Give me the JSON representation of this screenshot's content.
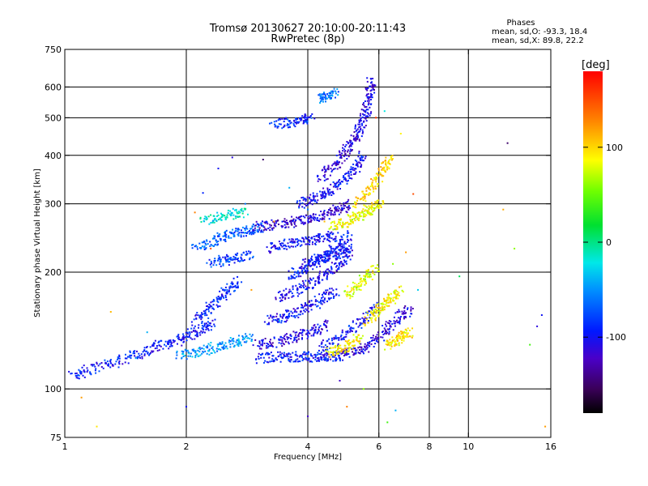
{
  "chart_data": {
    "type": "scatter",
    "title": "Tromsø 20130627 20:10:00-20:11:43",
    "subtitle": "RwPretec (8p)",
    "xlabel": "Frequency [MHz]",
    "ylabel": "Stationary phase Virtual Height [km]",
    "x_scale": "log",
    "y_scale": "log",
    "xlim": [
      1,
      16
    ],
    "ylim": [
      75,
      750
    ],
    "x_ticks": [
      1,
      2,
      4,
      6,
      8,
      10,
      16
    ],
    "x_grid": [
      2,
      4,
      6,
      8,
      10
    ],
    "y_ticks": [
      75,
      100,
      200,
      300,
      400,
      500,
      600,
      750
    ],
    "y_grid": [
      100,
      200,
      300,
      400,
      500,
      600
    ],
    "grid": true,
    "stats_heading": "Phases",
    "stats": [
      "mean, sd,O:  -93.3, 18.4",
      "mean, sd,X:   89.8, 22.2"
    ],
    "colorbar": {
      "unit": "[deg]",
      "range": [
        -180,
        180
      ],
      "ticks": [
        100,
        0,
        -100
      ],
      "colormap": "rainbow"
    },
    "traces": [
      {
        "points": [
          [
            1.05,
            108
          ],
          [
            1.15,
            112
          ],
          [
            1.3,
            116
          ],
          [
            1.45,
            121
          ],
          [
            1.6,
            126
          ],
          [
            1.75,
            130
          ],
          [
            1.9,
            133
          ],
          [
            2.05,
            138
          ],
          [
            2.2,
            143
          ],
          [
            2.35,
            150
          ]
        ],
        "phase": -95
      },
      {
        "points": [
          [
            2.1,
            150
          ],
          [
            2.25,
            160
          ],
          [
            2.4,
            170
          ],
          [
            2.55,
            180
          ],
          [
            2.7,
            190
          ]
        ],
        "phase": -90
      },
      {
        "points": [
          [
            1.9,
            122
          ],
          [
            2.1,
            124
          ],
          [
            2.3,
            127
          ],
          [
            2.5,
            130
          ],
          [
            2.7,
            133
          ],
          [
            2.9,
            136
          ]
        ],
        "phase": -50
      },
      {
        "points": [
          [
            2.1,
            230
          ],
          [
            2.3,
            240
          ],
          [
            2.5,
            248
          ],
          [
            2.7,
            252
          ],
          [
            2.9,
            258
          ],
          [
            3.1,
            262
          ]
        ],
        "phase": -70
      },
      {
        "points": [
          [
            2.2,
            270
          ],
          [
            2.4,
            278
          ],
          [
            2.6,
            282
          ],
          [
            2.8,
            285
          ]
        ],
        "phase": -20
      },
      {
        "points": [
          [
            2.3,
            210
          ],
          [
            2.5,
            215
          ],
          [
            2.7,
            218
          ],
          [
            2.9,
            222
          ]
        ],
        "phase": -80
      },
      {
        "points": [
          [
            3.0,
            120
          ],
          [
            3.3,
            121
          ],
          [
            3.6,
            121
          ],
          [
            3.9,
            121
          ],
          [
            4.2,
            121
          ],
          [
            4.5,
            121
          ],
          [
            4.8,
            122
          ]
        ],
        "phase": -95
      },
      {
        "points": [
          [
            3.0,
            130
          ],
          [
            3.3,
            132
          ],
          [
            3.6,
            135
          ],
          [
            3.9,
            138
          ],
          [
            4.2,
            142
          ],
          [
            4.5,
            147
          ]
        ],
        "phase": -110
      },
      {
        "points": [
          [
            3.2,
            150
          ],
          [
            3.5,
            153
          ],
          [
            3.8,
            158
          ],
          [
            4.1,
            164
          ],
          [
            4.4,
            172
          ],
          [
            4.7,
            180
          ]
        ],
        "phase": -100
      },
      {
        "points": [
          [
            3.4,
            172
          ],
          [
            3.7,
            178
          ],
          [
            4.0,
            185
          ],
          [
            4.3,
            193
          ],
          [
            4.6,
            203
          ],
          [
            4.9,
            215
          ],
          [
            5.1,
            228
          ]
        ],
        "phase": -105
      },
      {
        "points": [
          [
            3.6,
            196
          ],
          [
            3.9,
            203
          ],
          [
            4.2,
            212
          ],
          [
            4.5,
            223
          ],
          [
            4.8,
            236
          ],
          [
            5.1,
            250
          ]
        ],
        "phase": -95
      },
      {
        "points": [
          [
            3.2,
            230
          ],
          [
            3.5,
            235
          ],
          [
            3.8,
            238
          ],
          [
            4.1,
            241
          ],
          [
            4.4,
            245
          ],
          [
            4.7,
            252
          ]
        ],
        "phase": -100
      },
      {
        "points": [
          [
            3.0,
            262
          ],
          [
            3.3,
            265
          ],
          [
            3.6,
            268
          ],
          [
            3.9,
            272
          ],
          [
            4.2,
            276
          ],
          [
            4.5,
            282
          ],
          [
            4.8,
            290
          ],
          [
            5.1,
            300
          ]
        ],
        "phase": -115
      },
      {
        "points": [
          [
            3.8,
            300
          ],
          [
            4.1,
            308
          ],
          [
            4.4,
            318
          ],
          [
            4.7,
            332
          ],
          [
            5.0,
            350
          ],
          [
            5.3,
            375
          ],
          [
            5.5,
            400
          ]
        ],
        "phase": -100
      },
      {
        "points": [
          [
            4.3,
            350
          ],
          [
            4.6,
            372
          ],
          [
            4.9,
            398
          ],
          [
            5.1,
            425
          ],
          [
            5.3,
            455
          ],
          [
            5.5,
            490
          ],
          [
            5.6,
            530
          ],
          [
            5.7,
            580
          ],
          [
            5.75,
            630
          ]
        ],
        "phase": -110
      },
      {
        "points": [
          [
            3.9,
            210
          ],
          [
            4.2,
            215
          ],
          [
            4.5,
            220
          ],
          [
            4.8,
            226
          ],
          [
            5.1,
            232
          ]
        ],
        "phase": -100
      },
      {
        "points": [
          [
            4.3,
            128
          ],
          [
            4.7,
            133
          ],
          [
            5.1,
            141
          ],
          [
            5.5,
            152
          ],
          [
            5.9,
            166
          ]
        ],
        "phase": -95
      },
      {
        "points": [
          [
            4.8,
            122
          ],
          [
            5.2,
            124
          ],
          [
            5.6,
            128
          ],
          [
            6.0,
            135
          ],
          [
            6.4,
            145
          ],
          [
            6.8,
            155
          ],
          [
            7.2,
            160
          ]
        ],
        "phase": -110
      },
      {
        "points": [
          [
            4.5,
            124
          ],
          [
            4.8,
            126
          ],
          [
            5.1,
            130
          ],
          [
            5.4,
            136
          ]
        ],
        "phase": 90
      },
      {
        "points": [
          [
            4.6,
            262
          ],
          [
            4.9,
            268
          ],
          [
            5.2,
            275
          ],
          [
            5.5,
            283
          ],
          [
            5.8,
            292
          ],
          [
            6.1,
            302
          ]
        ],
        "phase": 85
      },
      {
        "points": [
          [
            5.3,
            300
          ],
          [
            5.6,
            320
          ],
          [
            5.9,
            345
          ],
          [
            6.2,
            370
          ],
          [
            6.4,
            395
          ]
        ],
        "phase": 100
      },
      {
        "points": [
          [
            5.6,
            150
          ],
          [
            5.9,
            158
          ],
          [
            6.2,
            165
          ],
          [
            6.5,
            172
          ],
          [
            6.8,
            180
          ]
        ],
        "phase": 90
      },
      {
        "points": [
          [
            6.3,
            130
          ],
          [
            6.6,
            133
          ],
          [
            6.9,
            137
          ],
          [
            7.2,
            141
          ]
        ],
        "phase": 95
      },
      {
        "points": [
          [
            5.0,
            175
          ],
          [
            5.3,
            185
          ],
          [
            5.6,
            195
          ],
          [
            5.9,
            205
          ]
        ],
        "phase": 80
      },
      {
        "points": [
          [
            3.3,
            480
          ],
          [
            3.6,
            485
          ],
          [
            3.9,
            492
          ],
          [
            4.1,
            500
          ]
        ],
        "phase": -90
      },
      {
        "points": [
          [
            4.3,
            560
          ],
          [
            4.5,
            570
          ],
          [
            4.7,
            585
          ]
        ],
        "phase": -60
      }
    ],
    "scatter_points": [
      [
        1.3,
        158,
        110
      ],
      [
        1.6,
        140,
        -40
      ],
      [
        1.1,
        95,
        120
      ],
      [
        1.2,
        80,
        95
      ],
      [
        2.0,
        90,
        -100
      ],
      [
        2.2,
        320,
        -90
      ],
      [
        2.1,
        285,
        130
      ],
      [
        2.4,
        370,
        -100
      ],
      [
        2.6,
        395,
        -110
      ],
      [
        2.8,
        300,
        -60
      ],
      [
        3.3,
        270,
        120
      ],
      [
        3.6,
        330,
        -40
      ],
      [
        3.1,
        390,
        -150
      ],
      [
        4.0,
        290,
        -60
      ],
      [
        4.4,
        270,
        110
      ],
      [
        6.2,
        520,
        -20
      ],
      [
        6.8,
        455,
        90
      ],
      [
        7.3,
        318,
        150
      ],
      [
        7.0,
        225,
        120
      ],
      [
        7.5,
        180,
        -30
      ],
      [
        4.0,
        85,
        -120
      ],
      [
        5.0,
        90,
        130
      ],
      [
        6.3,
        82,
        40
      ],
      [
        6.6,
        88,
        -40
      ],
      [
        5.5,
        100,
        60
      ],
      [
        9.5,
        195,
        10
      ],
      [
        12.2,
        290,
        115
      ],
      [
        12.5,
        430,
        -150
      ],
      [
        13.0,
        230,
        60
      ],
      [
        15.2,
        155,
        -100
      ],
      [
        14.8,
        145,
        -110
      ],
      [
        14.2,
        130,
        40
      ],
      [
        15.5,
        80,
        120
      ],
      [
        5.9,
        500,
        160
      ],
      [
        6.5,
        210,
        60
      ],
      [
        4.8,
        105,
        -120
      ],
      [
        3.4,
        150,
        -40
      ],
      [
        2.9,
        180,
        120
      ],
      [
        2.3,
        230,
        150
      ],
      [
        1.5,
        120,
        -40
      ]
    ]
  }
}
